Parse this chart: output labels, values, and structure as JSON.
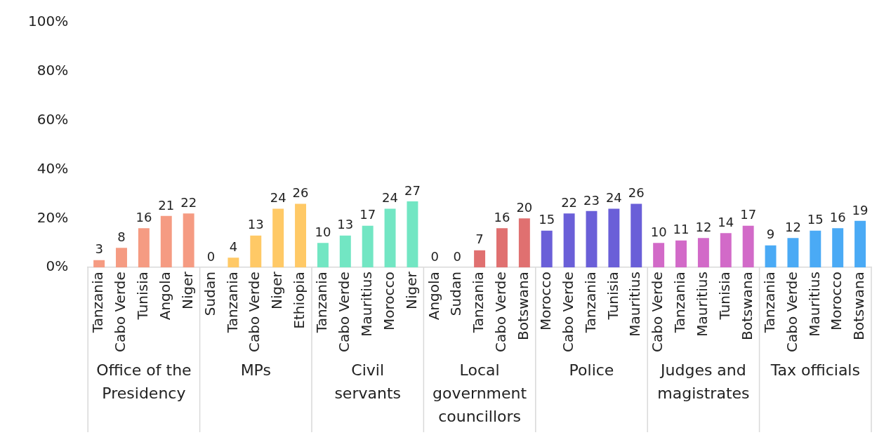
{
  "chart_data": {
    "type": "bar",
    "categories": [
      "Tanzania",
      "Cabo Verde",
      "Tunisia",
      "Angola",
      "Niger",
      "Sudan",
      "Tanzania",
      "Cabo Verde",
      "Niger",
      "Ethiopia",
      "Tanzania",
      "Cabo Verde",
      "Mauritius",
      "Morocco",
      "Niger",
      "Angola",
      "Sudan",
      "Tanzania",
      "Cabo Verde",
      "Botswana",
      "Morocco",
      "Cabo Verde",
      "Tanzania",
      "Tunisia",
      "Mauritius",
      "Cabo Verde",
      "Tanzania",
      "Mauritius",
      "Tunisia",
      "Botswana",
      "Tanzania",
      "Cabo Verde",
      "Mauritius",
      "Morocco",
      "Botswana"
    ],
    "values": [
      3,
      8,
      16,
      21,
      22,
      0,
      4,
      13,
      24,
      26,
      10,
      13,
      17,
      24,
      27,
      0,
      0,
      7,
      16,
      20,
      15,
      22,
      23,
      24,
      26,
      10,
      11,
      12,
      14,
      17,
      9,
      12,
      15,
      16,
      19
    ],
    "colors": [
      "#f59b82",
      "#f59b82",
      "#f59b82",
      "#f59b82",
      "#f59b82",
      "#ffc966",
      "#ffc966",
      "#ffc966",
      "#ffc966",
      "#ffc966",
      "#72e6c3",
      "#72e6c3",
      "#72e6c3",
      "#72e6c3",
      "#72e6c3",
      "#e07070",
      "#e07070",
      "#e07070",
      "#e07070",
      "#e07070",
      "#6a5fd8",
      "#6a5fd8",
      "#6a5fd8",
      "#6a5fd8",
      "#6a5fd8",
      "#d26ac8",
      "#d26ac8",
      "#d26ac8",
      "#d26ac8",
      "#d26ac8",
      "#4aaaf5",
      "#4aaaf5",
      "#4aaaf5",
      "#4aaaf5",
      "#4aaaf5"
    ],
    "annotations": [
      "Office of the Presidency",
      "MPs",
      "Civil servants",
      "Local government councillors",
      "Police",
      "Judges and magistrates",
      "Tax officials"
    ],
    "ylim": [
      0,
      100
    ],
    "yticks": [
      {
        "value": 0,
        "label": "0%"
      },
      {
        "value": 20,
        "label": "20%"
      },
      {
        "value": 40,
        "label": "40%"
      },
      {
        "value": 60,
        "label": "60%"
      },
      {
        "value": 80,
        "label": "80%"
      },
      {
        "value": 100,
        "label": "100%"
      }
    ],
    "data_labels": true,
    "grid": false,
    "legend": false
  }
}
